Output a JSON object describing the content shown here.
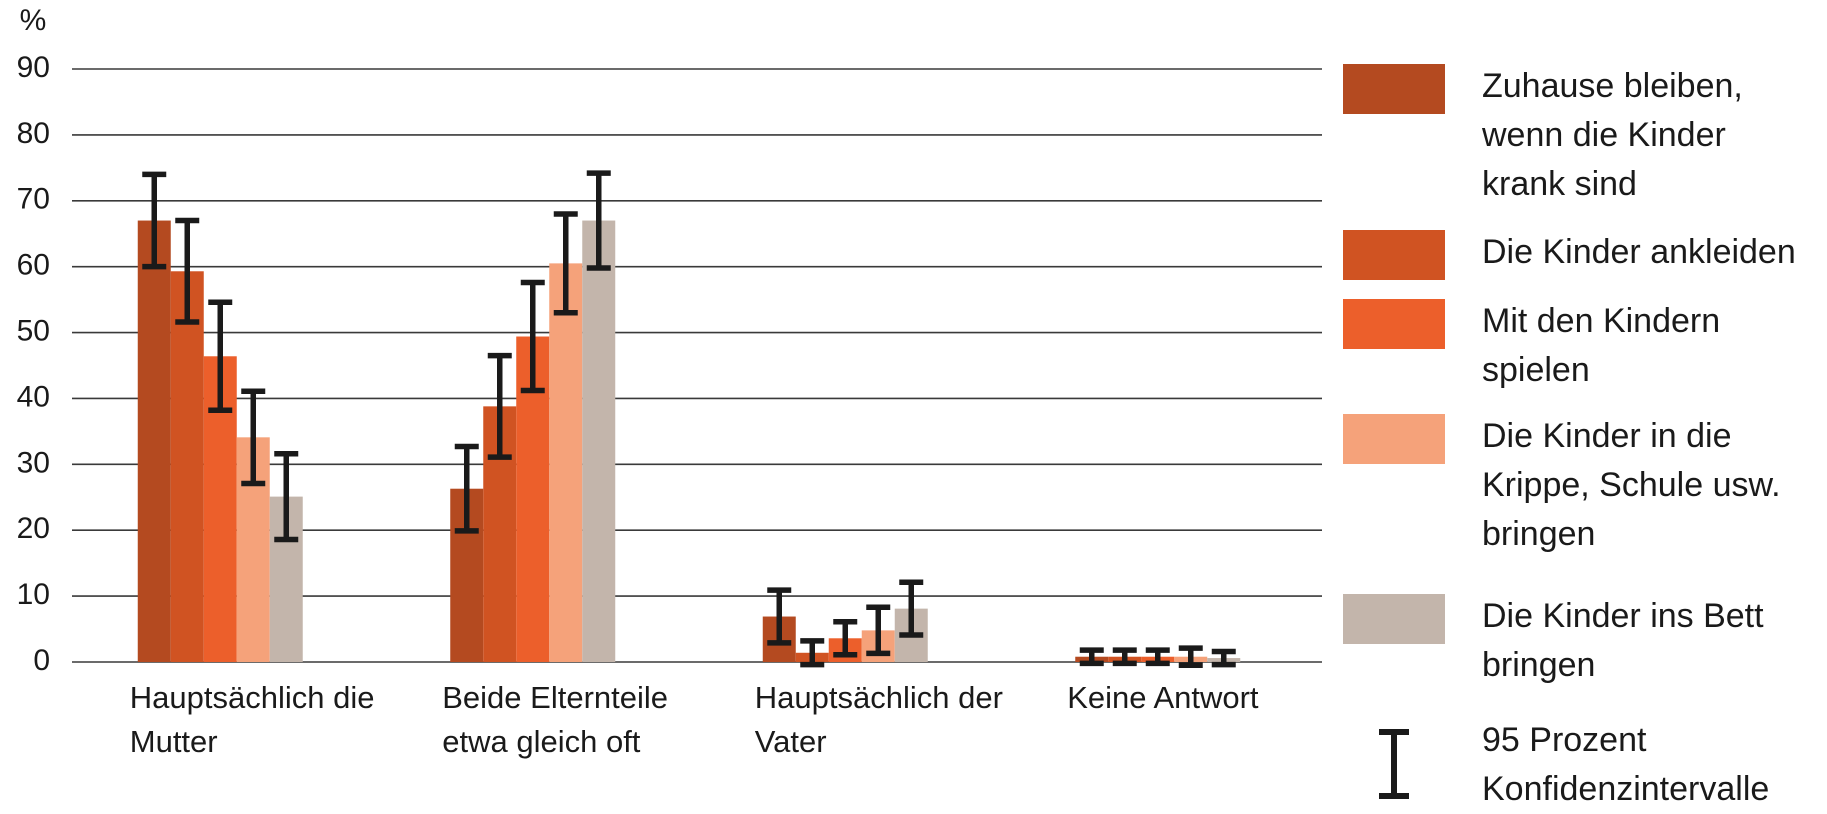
{
  "chart_data": {
    "type": "bar",
    "y_axis_label": "%",
    "categories": [
      "Hauptsächlich die Mutter",
      "Beide Elternteile etwa gleich oft",
      "Hauptsächlich der Vater",
      "Keine Antwort"
    ],
    "series": [
      {
        "name": "Zuhause bleiben, wenn die Kinder krank sind",
        "color": "#b44a20",
        "values": [
          67,
          26.3,
          6.9,
          0.8
        ],
        "errors": [
          7,
          6.4,
          4,
          1
        ]
      },
      {
        "name": "Die Kinder ankleiden",
        "color": "#d05322",
        "values": [
          59.3,
          38.8,
          1.4,
          0.8
        ],
        "errors": [
          7.7,
          7.7,
          1.8,
          1
        ]
      },
      {
        "name": "Mit den Kindern spielen",
        "color": "#ec5f2b",
        "values": [
          46.4,
          49.4,
          3.6,
          0.8
        ],
        "errors": [
          8.2,
          8.2,
          2.5,
          1
        ]
      },
      {
        "name": "Die Kinder in die Krippe, Schule usw. bringen",
        "color": "#f5a27a",
        "values": [
          34.1,
          60.5,
          4.8,
          0.8
        ],
        "errors": [
          7,
          7.5,
          3.5,
          1.3
        ]
      },
      {
        "name": "Die Kinder ins Bett bringen",
        "color": "#c3b5ab",
        "values": [
          25.1,
          67,
          8.1,
          0.6
        ],
        "errors": [
          6.5,
          7.2,
          4,
          1
        ]
      }
    ],
    "error_legend": "95 Prozent Konfidenzintervalle",
    "ylim": [
      0,
      90
    ],
    "yticks": [
      0,
      10,
      20,
      30,
      40,
      50,
      60,
      70,
      80,
      90
    ],
    "grid": true,
    "legend": "right"
  }
}
